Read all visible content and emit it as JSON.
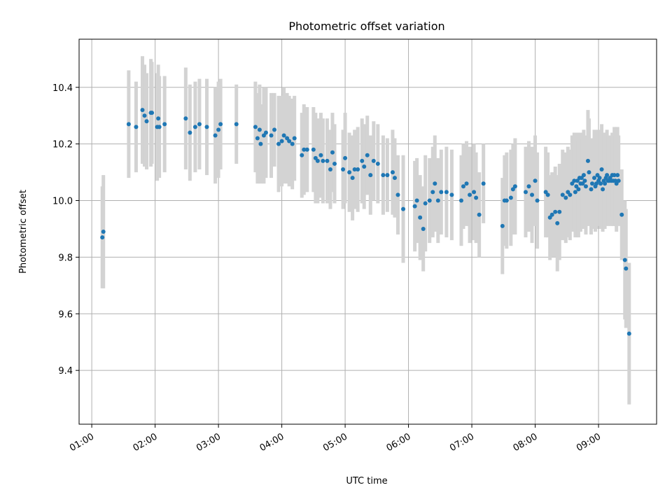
{
  "chart_data": {
    "type": "scatter",
    "title": "Photometric offset variation",
    "xlabel": "UTC time",
    "ylabel": "Photometric offset",
    "grid": true,
    "x_ticks": [
      "01:00",
      "02:00",
      "03:00",
      "04:00",
      "05:00",
      "06:00",
      "07:00",
      "08:00",
      "09:00"
    ],
    "y_ticks": [
      "9.4",
      "9.6",
      "9.8",
      "10.0",
      "10.2",
      "10.4"
    ],
    "xlim": [
      "00:48",
      "09:55"
    ],
    "ylim": [
      9.21,
      10.57
    ],
    "colors": {
      "point": "#1f77b4",
      "errorbar": "#d3d3d3",
      "grid": "#b0b0b0"
    },
    "series": [
      {
        "points": [
          [
            "01:10",
            9.87,
            0.18
          ],
          [
            "01:11",
            9.89,
            0.2
          ],
          [
            "01:35",
            10.27,
            0.19
          ],
          [
            "01:42",
            10.26,
            0.16
          ],
          [
            "01:48",
            10.32,
            0.19
          ],
          [
            "01:50",
            10.3,
            0.18
          ],
          [
            "01:52",
            10.28,
            0.17
          ],
          [
            "01:56",
            10.31,
            0.19
          ],
          [
            "01:57",
            10.31,
            0.18
          ],
          [
            "02:02",
            10.26,
            0.19
          ],
          [
            "02:03",
            10.29,
            0.19
          ],
          [
            "02:04",
            10.26,
            0.18
          ],
          [
            "02:09",
            10.27,
            0.17
          ],
          [
            "02:29",
            10.29,
            0.18
          ],
          [
            "02:33",
            10.24,
            0.17
          ],
          [
            "02:38",
            10.26,
            0.16
          ],
          [
            "02:42",
            10.27,
            0.16
          ],
          [
            "02:49",
            10.26,
            0.17
          ],
          [
            "02:57",
            10.23,
            0.17
          ],
          [
            "03:00",
            10.25,
            0.17
          ],
          [
            "03:02",
            10.27,
            0.16
          ],
          [
            "03:17",
            10.27,
            0.14
          ],
          [
            "03:35",
            10.26,
            0.16
          ],
          [
            "03:37",
            10.22,
            0.16
          ],
          [
            "03:39",
            10.25,
            0.16
          ],
          [
            "03:40",
            10.2,
            0.14
          ],
          [
            "03:43",
            10.23,
            0.17
          ],
          [
            "03:45",
            10.24,
            0.16
          ],
          [
            "03:50",
            10.23,
            0.15
          ],
          [
            "03:53",
            10.25,
            0.13
          ],
          [
            "03:57",
            10.2,
            0.17
          ],
          [
            "04:00",
            10.21,
            0.16
          ],
          [
            "04:02",
            10.23,
            0.17
          ],
          [
            "04:05",
            10.22,
            0.16
          ],
          [
            "04:07",
            10.21,
            0.16
          ],
          [
            "04:10",
            10.2,
            0.16
          ],
          [
            "04:12",
            10.22,
            0.15
          ],
          [
            "04:19",
            10.16,
            0.15
          ],
          [
            "04:21",
            10.18,
            0.16
          ],
          [
            "04:24",
            10.18,
            0.15
          ],
          [
            "04:30",
            10.18,
            0.15
          ],
          [
            "04:32",
            10.15,
            0.16
          ],
          [
            "04:34",
            10.14,
            0.15
          ],
          [
            "04:37",
            10.16,
            0.15
          ],
          [
            "04:39",
            10.14,
            0.15
          ],
          [
            "04:43",
            10.14,
            0.15
          ],
          [
            "04:46",
            10.11,
            0.14
          ],
          [
            "04:48",
            10.17,
            0.14
          ],
          [
            "04:50",
            10.13,
            0.14
          ],
          [
            "04:58",
            10.11,
            0.14
          ],
          [
            "05:00",
            10.15,
            0.16
          ],
          [
            "05:04",
            10.1,
            0.14
          ],
          [
            "05:07",
            10.08,
            0.15
          ],
          [
            "05:09",
            10.11,
            0.14
          ],
          [
            "05:12",
            10.11,
            0.15
          ],
          [
            "05:16",
            10.14,
            0.15
          ],
          [
            "05:18",
            10.12,
            0.15
          ],
          [
            "05:21",
            10.16,
            0.14
          ],
          [
            "05:24",
            10.09,
            0.14
          ],
          [
            "05:27",
            10.14,
            0.14
          ],
          [
            "05:31",
            10.13,
            0.14
          ],
          [
            "05:36",
            10.09,
            0.14
          ],
          [
            "05:40",
            10.09,
            0.13
          ],
          [
            "05:45",
            10.1,
            0.15
          ],
          [
            "05:47",
            10.08,
            0.14
          ],
          [
            "05:50",
            10.02,
            0.14
          ],
          [
            "05:55",
            9.97,
            0.19
          ],
          [
            "06:06",
            9.98,
            0.16
          ],
          [
            "06:08",
            10.0,
            0.15
          ],
          [
            "06:11",
            9.94,
            0.15
          ],
          [
            "06:14",
            9.9,
            0.15
          ],
          [
            "06:16",
            9.99,
            0.17
          ],
          [
            "06:20",
            10.0,
            0.15
          ],
          [
            "06:23",
            10.03,
            0.16
          ],
          [
            "06:25",
            10.06,
            0.17
          ],
          [
            "06:28",
            10.0,
            0.15
          ],
          [
            "06:31",
            10.03,
            0.15
          ],
          [
            "06:36",
            10.03,
            0.16
          ],
          [
            "06:41",
            10.02,
            0.16
          ],
          [
            "06:50",
            10.0,
            0.16
          ],
          [
            "06:52",
            10.05,
            0.15
          ],
          [
            "06:55",
            10.06,
            0.15
          ],
          [
            "06:58",
            10.02,
            0.17
          ],
          [
            "07:02",
            10.03,
            0.17
          ],
          [
            "07:04",
            10.01,
            0.16
          ],
          [
            "07:07",
            9.95,
            0.15
          ],
          [
            "07:11",
            10.06,
            0.14
          ],
          [
            "07:29",
            9.91,
            0.17
          ],
          [
            "07:31",
            10.0,
            0.16
          ],
          [
            "07:33",
            10.0,
            0.17
          ],
          [
            "07:37",
            10.01,
            0.17
          ],
          [
            "07:39",
            10.04,
            0.16
          ],
          [
            "07:41",
            10.05,
            0.17
          ],
          [
            "07:51",
            10.03,
            0.16
          ],
          [
            "07:54",
            10.05,
            0.16
          ],
          [
            "07:57",
            10.02,
            0.17
          ],
          [
            "08:00",
            10.07,
            0.16
          ],
          [
            "08:02",
            10.0,
            0.17
          ],
          [
            "08:10",
            10.03,
            0.16
          ],
          [
            "08:12",
            10.02,
            0.15
          ],
          [
            "08:14",
            9.94,
            0.15
          ],
          [
            "08:16",
            9.95,
            0.15
          ],
          [
            "08:19",
            9.96,
            0.16
          ],
          [
            "08:21",
            9.92,
            0.17
          ],
          [
            "08:23",
            9.96,
            0.17
          ],
          [
            "08:26",
            10.02,
            0.16
          ],
          [
            "08:29",
            10.01,
            0.16
          ],
          [
            "08:31",
            10.03,
            0.16
          ],
          [
            "08:33",
            10.02,
            0.16
          ],
          [
            "08:35",
            10.06,
            0.17
          ],
          [
            "08:37",
            10.07,
            0.17
          ],
          [
            "08:38",
            10.03,
            0.16
          ],
          [
            "08:39",
            10.05,
            0.16
          ],
          [
            "08:40",
            10.07,
            0.17
          ],
          [
            "08:41",
            10.04,
            0.17
          ],
          [
            "08:42",
            10.08,
            0.16
          ],
          [
            "08:43",
            10.06,
            0.17
          ],
          [
            "08:44",
            10.08,
            0.16
          ],
          [
            "08:45",
            10.06,
            0.16
          ],
          [
            "08:46",
            10.09,
            0.16
          ],
          [
            "08:47",
            10.07,
            0.16
          ],
          [
            "08:48",
            10.05,
            0.17
          ],
          [
            "08:50",
            10.14,
            0.18
          ],
          [
            "08:51",
            10.1,
            0.19
          ],
          [
            "08:53",
            10.04,
            0.16
          ],
          [
            "08:54",
            10.06,
            0.16
          ],
          [
            "08:56",
            10.08,
            0.17
          ],
          [
            "08:57",
            10.05,
            0.16
          ],
          [
            "08:58",
            10.06,
            0.16
          ],
          [
            "08:59",
            10.09,
            0.16
          ],
          [
            "09:00",
            10.07,
            0.15
          ],
          [
            "09:01",
            10.08,
            0.17
          ],
          [
            "09:02",
            10.06,
            0.16
          ],
          [
            "09:03",
            10.11,
            0.16
          ],
          [
            "09:04",
            10.04,
            0.15
          ],
          [
            "09:05",
            10.07,
            0.17
          ],
          [
            "09:06",
            10.06,
            0.16
          ],
          [
            "09:07",
            10.08,
            0.16
          ],
          [
            "09:08",
            10.09,
            0.16
          ],
          [
            "09:09",
            10.07,
            0.16
          ],
          [
            "09:10",
            10.07,
            0.15
          ],
          [
            "09:11",
            10.08,
            0.15
          ],
          [
            "09:12",
            10.07,
            0.16
          ],
          [
            "09:13",
            10.09,
            0.15
          ],
          [
            "09:14",
            10.07,
            0.16
          ],
          [
            "09:15",
            10.09,
            0.17
          ],
          [
            "09:16",
            10.07,
            0.16
          ],
          [
            "09:17",
            10.06,
            0.17
          ],
          [
            "09:18",
            10.09,
            0.17
          ],
          [
            "09:19",
            10.07,
            0.16
          ],
          [
            "09:22",
            9.95,
            0.16
          ],
          [
            "09:25",
            9.79,
            0.21
          ],
          [
            "09:26",
            9.76,
            0.21
          ],
          [
            "09:29",
            9.53,
            0.25
          ]
        ]
      }
    ]
  }
}
